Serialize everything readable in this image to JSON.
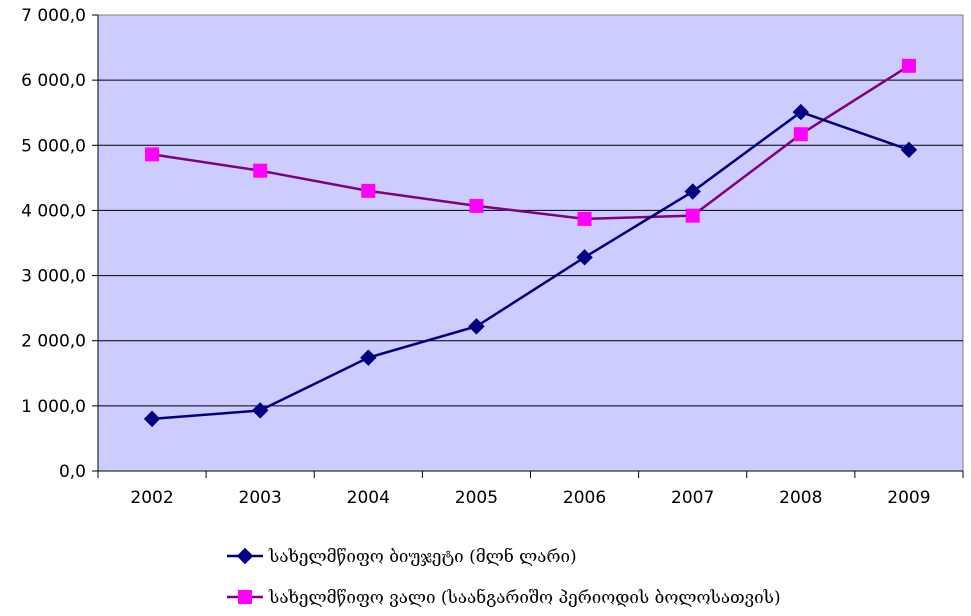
{
  "chart_data": {
    "type": "line",
    "title": "",
    "xlabel": "",
    "ylabel": "",
    "categories": [
      "2002",
      "2003",
      "2004",
      "2005",
      "2006",
      "2007",
      "2008",
      "2009"
    ],
    "ylim": [
      0,
      7000
    ],
    "yticks": [
      0,
      1000,
      2000,
      3000,
      4000,
      5000,
      6000,
      7000
    ],
    "ytick_labels": [
      "0,0",
      "1 000,0",
      "2 000,0",
      "3 000,0",
      "4 000,0",
      "5 000,0",
      "6 000,0",
      "7 000,0"
    ],
    "grid": "horizontal",
    "legend_position": "bottom",
    "plot_background": "#ccccff",
    "series": [
      {
        "name": "სახელმწიფო ბიუჯეტი (მლნ ლარი)",
        "marker": "diamond",
        "color": "#000080",
        "values": [
          800,
          930,
          1740,
          2220,
          3280,
          4290,
          5510,
          4930
        ]
      },
      {
        "name": "სახელმწიფო ვალი (საანგარიშო პერიოდის ბოლოსათვის)",
        "marker": "square",
        "color": "#800080",
        "marker_color": "#ff00ff",
        "values": [
          4860,
          4610,
          4300,
          4070,
          3870,
          3920,
          5170,
          6220
        ]
      }
    ]
  }
}
